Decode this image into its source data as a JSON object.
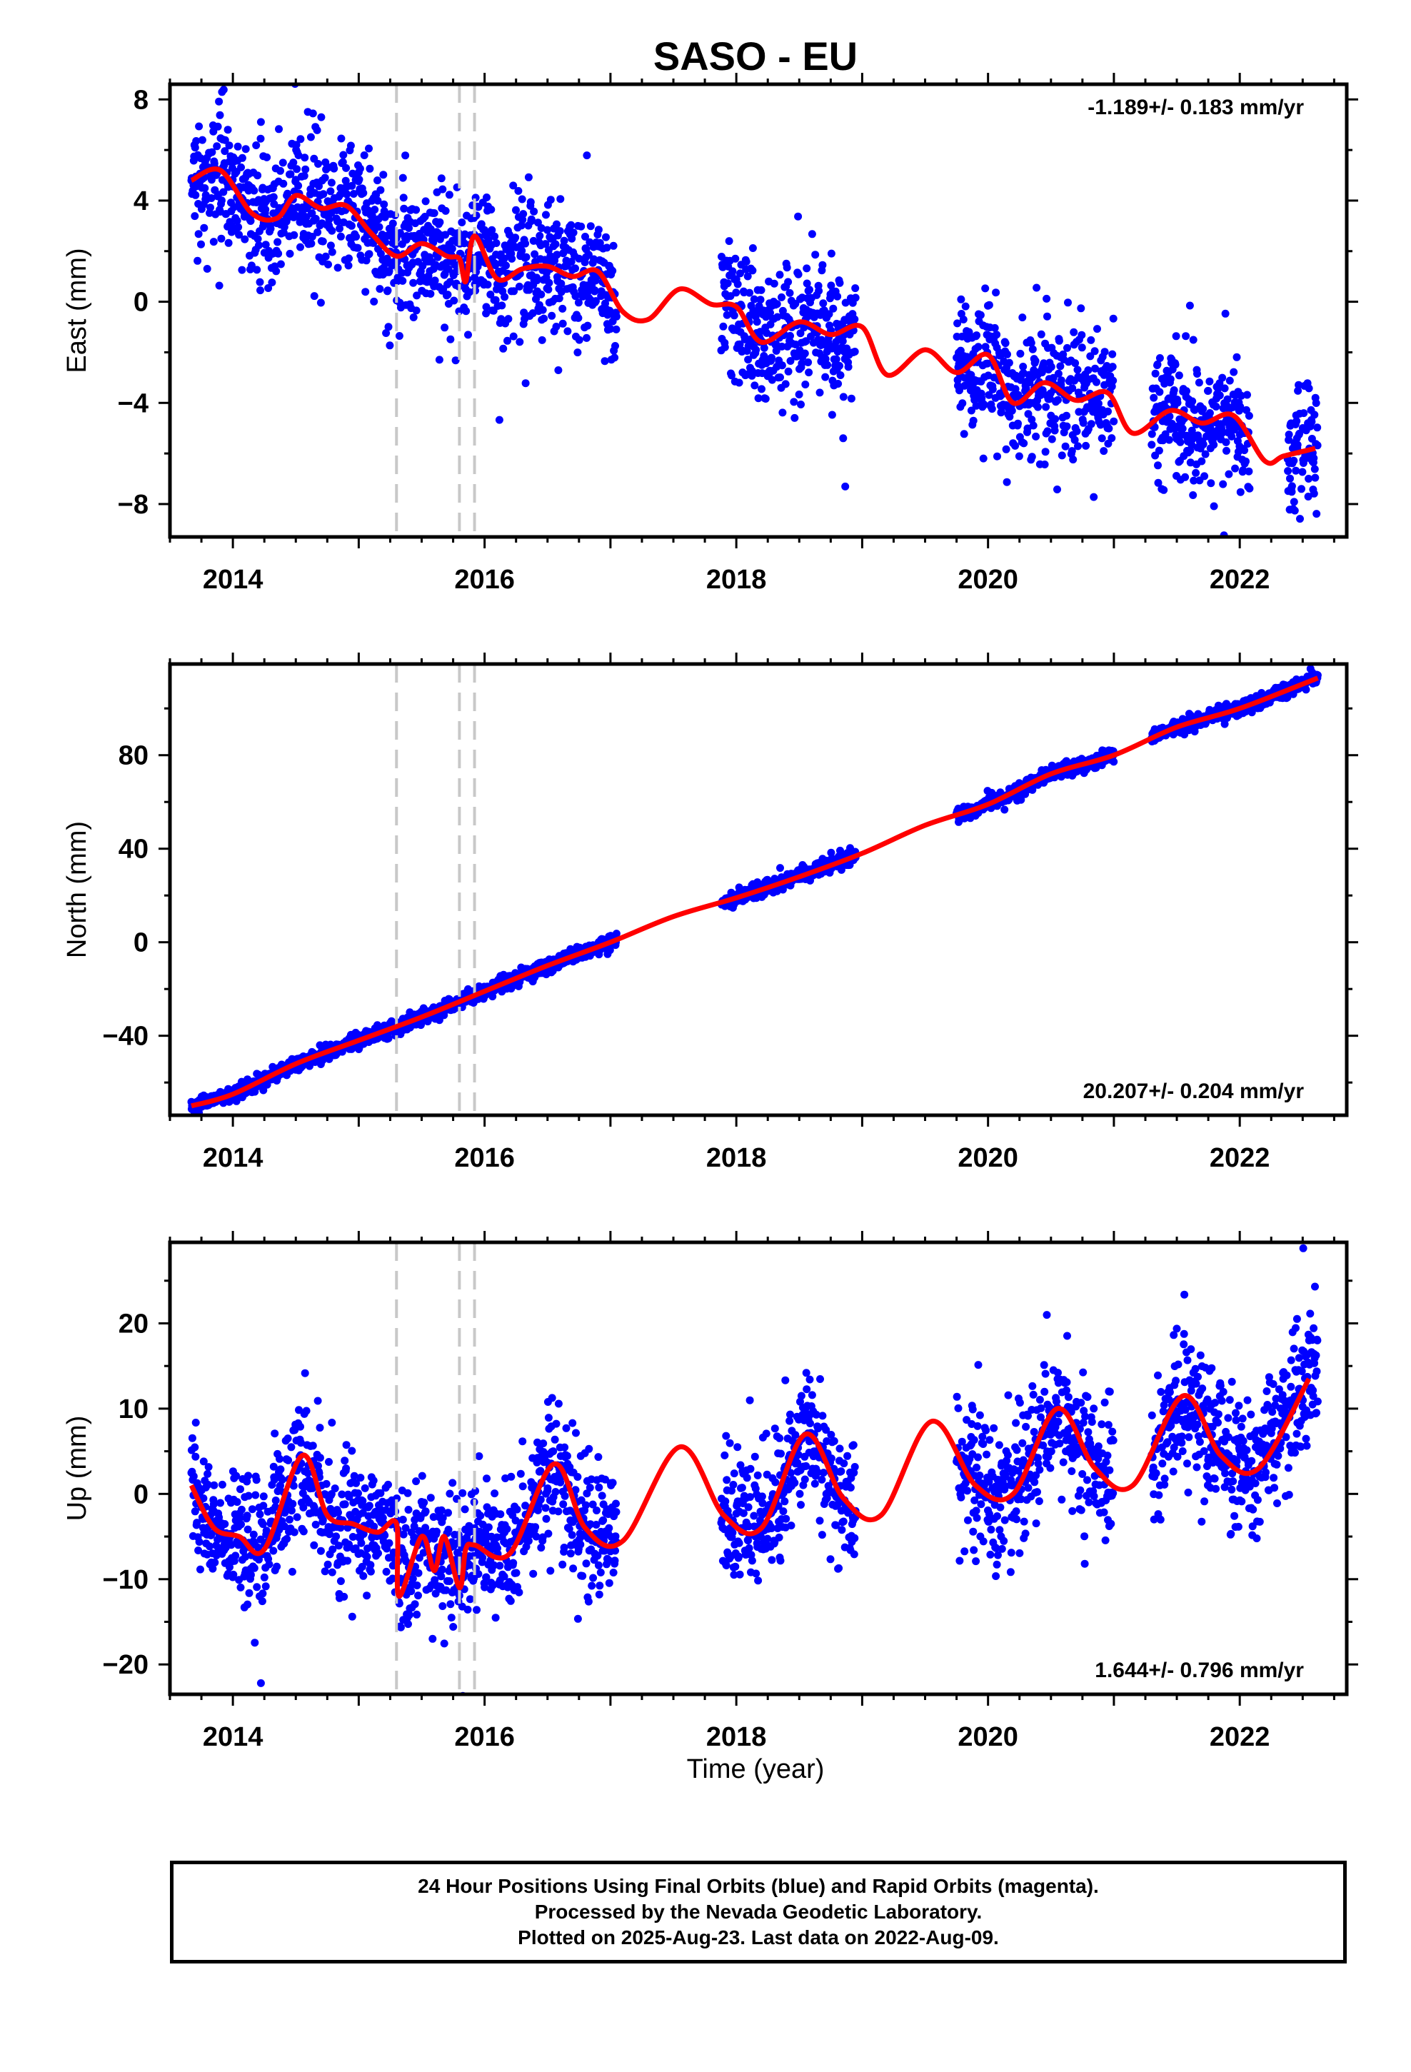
{
  "title": "SASO - EU",
  "xlabel": "Time (year)",
  "footer": {
    "line1": "24 Hour Positions Using Final Orbits (blue) and Rapid Orbits (magenta).",
    "line2": "Processed by the Nevada Geodetic Laboratory.",
    "line3": "Plotted on 2025-Aug-23. Last data on 2022-Aug-09."
  },
  "colors": {
    "final": "#0000ff",
    "model": "#ff0000",
    "breaks": "#c8c8c8",
    "axes": "#000000"
  },
  "chart_data": [
    {
      "type": "scatter",
      "name": "east",
      "ylabel": "East (mm)",
      "rate_label": "-1.189+/- 0.183 mm/yr",
      "rate_position": "top-right",
      "xlim": [
        2013.5,
        2022.85
      ],
      "ylim": [
        -9.3,
        8.6
      ],
      "xticks": [
        2014,
        2016,
        2018,
        2020,
        2022
      ],
      "yticks": [
        8,
        4,
        0,
        -4,
        -8
      ],
      "ytick_labels": [
        "8",
        "4",
        "0",
        "−4",
        "−8"
      ],
      "breaks": [
        2015.3,
        2015.8,
        2015.92
      ],
      "data_segments": [
        [
          2013.67,
          2017.05
        ],
        [
          2017.88,
          2018.95
        ],
        [
          2019.75,
          2021.0
        ],
        [
          2021.3,
          2022.08
        ],
        [
          2022.38,
          2022.62
        ]
      ],
      "model": {
        "x": [
          2013.67,
          2013.9,
          2014.15,
          2014.35,
          2014.5,
          2014.7,
          2014.9,
          2015.1,
          2015.3,
          2015.5,
          2015.7,
          2015.8,
          2015.85,
          2015.92,
          2016.1,
          2016.3,
          2016.5,
          2016.7,
          2016.9,
          2017.1,
          2017.3,
          2017.55,
          2017.8,
          2018.0,
          2018.2,
          2018.5,
          2018.75,
          2019.0,
          2019.2,
          2019.5,
          2019.75,
          2020.0,
          2020.2,
          2020.45,
          2020.7,
          2020.95,
          2021.15,
          2021.45,
          2021.7,
          2021.95,
          2022.2,
          2022.35,
          2022.6
        ],
        "y": [
          4.8,
          5.2,
          3.5,
          3.3,
          4.2,
          3.7,
          3.8,
          2.7,
          1.8,
          2.3,
          1.8,
          1.7,
          0.8,
          2.6,
          0.9,
          1.3,
          1.4,
          1.0,
          1.2,
          -0.4,
          -0.7,
          0.5,
          -0.1,
          -0.2,
          -1.6,
          -0.8,
          -1.3,
          -1.0,
          -2.9,
          -1.9,
          -2.8,
          -2.1,
          -4.0,
          -3.2,
          -3.9,
          -3.6,
          -5.2,
          -4.3,
          -4.8,
          -4.5,
          -6.3,
          -6.1,
          -5.8
        ]
      },
      "scatter_sd": 1.3
    },
    {
      "type": "scatter",
      "name": "north",
      "ylabel": "North (mm)",
      "rate_label": "20.207+/- 0.204 mm/yr",
      "rate_position": "bottom-right",
      "xlim": [
        2013.5,
        2022.85
      ],
      "ylim": [
        -74,
        119
      ],
      "xticks": [
        2014,
        2016,
        2018,
        2020,
        2022
      ],
      "yticks": [
        80,
        40,
        0,
        -40
      ],
      "ytick_labels": [
        "80",
        "40",
        "0",
        "−40"
      ],
      "breaks": [
        2015.3,
        2015.8,
        2015.92
      ],
      "data_segments": [
        [
          2013.67,
          2017.05
        ],
        [
          2017.88,
          2018.95
        ],
        [
          2019.75,
          2021.0
        ],
        [
          2021.3,
          2022.62
        ]
      ],
      "model": {
        "x": [
          2013.67,
          2014.0,
          2014.5,
          2015.0,
          2015.5,
          2016.0,
          2016.5,
          2017.0,
          2017.5,
          2018.0,
          2018.5,
          2019.0,
          2019.5,
          2020.0,
          2020.5,
          2021.0,
          2021.5,
          2022.0,
          2022.62
        ],
        "y": [
          -70,
          -65,
          -52,
          -42,
          -32,
          -21,
          -10,
          0,
          11,
          19,
          28,
          38,
          50,
          59,
          72,
          80,
          92,
          100,
          113
        ]
      },
      "scatter_sd": 1.5
    },
    {
      "type": "scatter",
      "name": "up",
      "ylabel": "Up (mm)",
      "rate_label": "1.644+/- 0.796 mm/yr",
      "rate_position": "bottom-right",
      "xlim": [
        2013.5,
        2022.85
      ],
      "ylim": [
        -23.5,
        29.5
      ],
      "xticks": [
        2014,
        2016,
        2018,
        2020,
        2022
      ],
      "yticks": [
        20,
        10,
        0,
        -10,
        -20
      ],
      "ytick_labels": [
        "20",
        "10",
        "0",
        "−10",
        "−20"
      ],
      "breaks": [
        2015.3,
        2015.8,
        2015.92
      ],
      "data_segments": [
        [
          2013.67,
          2017.05
        ],
        [
          2017.88,
          2018.95
        ],
        [
          2019.75,
          2021.0
        ],
        [
          2021.3,
          2022.62
        ]
      ],
      "model": {
        "x": [
          2013.67,
          2013.85,
          2014.05,
          2014.25,
          2014.55,
          2014.75,
          2014.95,
          2015.15,
          2015.3,
          2015.32,
          2015.5,
          2015.6,
          2015.68,
          2015.8,
          2015.85,
          2015.92,
          2016.2,
          2016.55,
          2016.8,
          2017.1,
          2017.55,
          2017.9,
          2018.2,
          2018.55,
          2018.85,
          2019.15,
          2019.55,
          2019.9,
          2020.2,
          2020.55,
          2020.85,
          2021.15,
          2021.55,
          2021.85,
          2022.15,
          2022.55
        ],
        "y": [
          1,
          -4,
          -5,
          -6.5,
          4.5,
          -2.5,
          -3.5,
          -4.5,
          -3.5,
          -12,
          -5,
          -9,
          -5,
          -11,
          -6.5,
          -6,
          -7,
          3.5,
          -4,
          -5.5,
          5.5,
          -2.5,
          -4,
          7,
          -0.5,
          -2.5,
          8.5,
          1,
          0,
          10,
          3,
          1,
          11.5,
          4.5,
          3,
          13.5
        ]
      },
      "scatter_sd": 3.8
    }
  ]
}
